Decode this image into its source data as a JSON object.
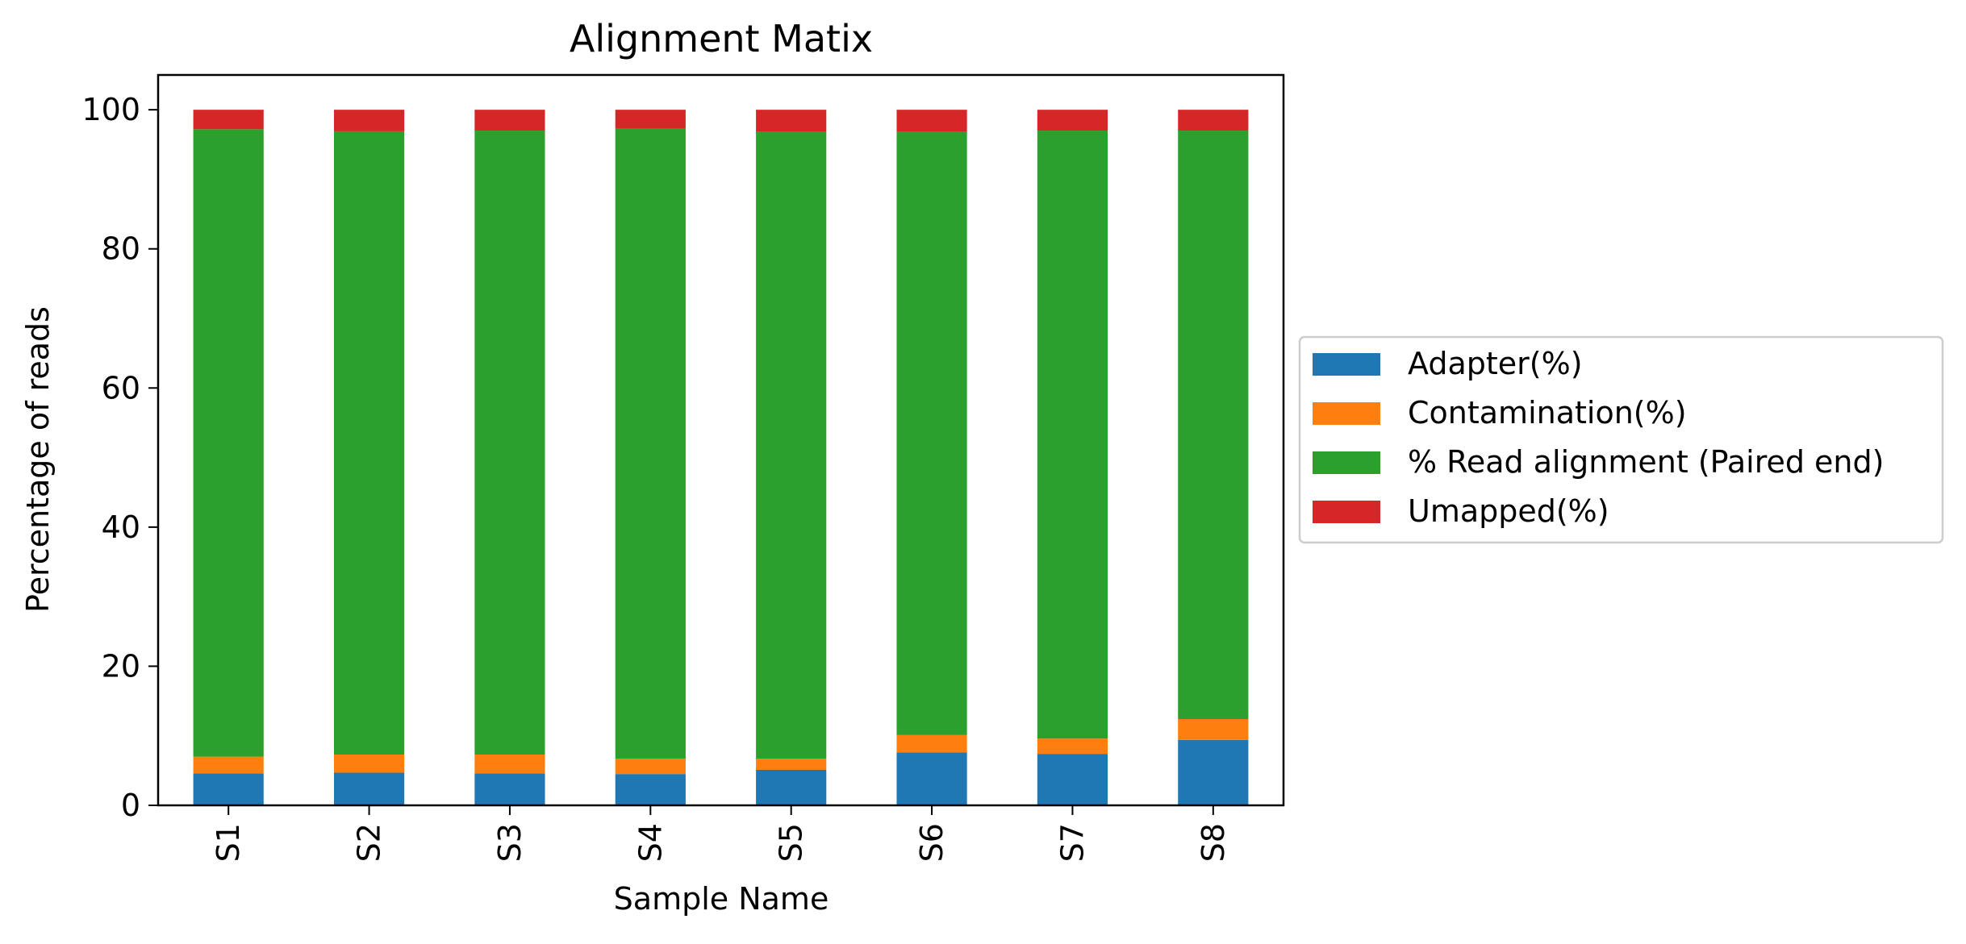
{
  "chart_data": {
    "type": "bar",
    "stacked": true,
    "title": "Alignment Matix",
    "xlabel": "Sample Name",
    "ylabel": "Percentage of reads",
    "categories": [
      "S1",
      "S2",
      "S3",
      "S4",
      "S5",
      "S6",
      "S7",
      "S8"
    ],
    "ylim": [
      0,
      105
    ],
    "yticks": [
      0,
      20,
      40,
      60,
      80,
      100
    ],
    "grid": false,
    "legend_position": "center-left outside plot, right side",
    "series": [
      {
        "name": "Adapter(%)",
        "color": "#1f77b4",
        "values": [
          4.6,
          4.7,
          4.6,
          4.5,
          5.1,
          7.6,
          7.4,
          9.4
        ]
      },
      {
        "name": "Contamination(%)",
        "color": "#ff7f0e",
        "values": [
          2.4,
          2.6,
          2.7,
          2.2,
          1.6,
          2.5,
          2.2,
          3.0
        ]
      },
      {
        "name": "% Read alignment (Paired end)",
        "color": "#2ca02c",
        "values": [
          90.2,
          89.6,
          89.7,
          90.6,
          90.1,
          86.7,
          87.4,
          84.6
        ]
      },
      {
        "name": "Umapped(%)",
        "color": "#d62728",
        "values": [
          2.8,
          3.1,
          3.0,
          2.7,
          3.2,
          3.2,
          3.0,
          3.0
        ]
      }
    ]
  }
}
